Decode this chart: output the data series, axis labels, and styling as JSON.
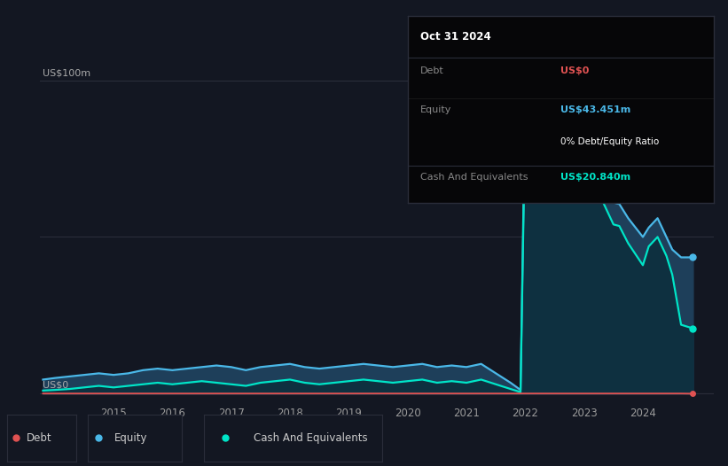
{
  "bg_color": "#131722",
  "plot_bg_color": "#131722",
  "grid_color": "#2a2d3a",
  "debt_color": "#e05252",
  "equity_color": "#4ab8e8",
  "cash_color": "#00e5c8",
  "equity_fill_color": "#1e3f5a",
  "cash_fill_color": "#0e3040",
  "tooltip_bg": "#060608",
  "tooltip_border": "#2a2d3a",
  "tooltip_title": "Oct 31 2024",
  "tooltip_debt_label": "Debt",
  "tooltip_debt_value": "US$0",
  "tooltip_equity_label": "Equity",
  "tooltip_equity_value": "US$43.451m",
  "tooltip_ratio": "0% Debt/Equity Ratio",
  "tooltip_cash_label": "Cash And Equivalents",
  "tooltip_cash_value": "US$20.840m",
  "legend_debt": "Debt",
  "legend_equity": "Equity",
  "legend_cash": "Cash And Equivalents",
  "zero_label": "US$0",
  "hundred_label": "US$100m",
  "x_ticks": [
    2015,
    2016,
    2017,
    2018,
    2019,
    2020,
    2021,
    2022,
    2023,
    2024
  ],
  "years": [
    2013.8,
    2014.0,
    2014.25,
    2014.5,
    2014.75,
    2015.0,
    2015.25,
    2015.5,
    2015.75,
    2016.0,
    2016.25,
    2016.5,
    2016.75,
    2017.0,
    2017.25,
    2017.5,
    2017.75,
    2018.0,
    2018.25,
    2018.5,
    2018.75,
    2019.0,
    2019.25,
    2019.5,
    2019.75,
    2020.0,
    2020.25,
    2020.5,
    2020.75,
    2021.0,
    2021.25,
    2021.5,
    2021.75,
    2021.92,
    2022.0,
    2022.25,
    2022.5,
    2022.75,
    2023.0,
    2023.1,
    2023.25,
    2023.5,
    2023.6,
    2023.75,
    2024.0,
    2024.1,
    2024.25,
    2024.4,
    2024.5,
    2024.65,
    2024.85
  ],
  "equity": [
    4.5,
    5.0,
    5.5,
    6.0,
    6.5,
    6.0,
    6.5,
    7.5,
    8.0,
    7.5,
    8.0,
    8.5,
    9.0,
    8.5,
    7.5,
    8.5,
    9.0,
    9.5,
    8.5,
    8.0,
    8.5,
    9.0,
    9.5,
    9.0,
    8.5,
    9.0,
    9.5,
    8.5,
    9.0,
    8.5,
    9.5,
    6.5,
    3.5,
    1.2,
    96.0,
    91.0,
    86.0,
    79.0,
    74.0,
    72.0,
    69.0,
    61.0,
    60.5,
    56.0,
    50.0,
    53.0,
    56.0,
    50.0,
    46.0,
    43.5,
    43.5
  ],
  "cash": [
    1.0,
    1.2,
    1.5,
    2.0,
    2.5,
    2.0,
    2.5,
    3.0,
    3.5,
    3.0,
    3.5,
    4.0,
    3.5,
    3.0,
    2.5,
    3.5,
    4.0,
    4.5,
    3.5,
    3.0,
    3.5,
    4.0,
    4.5,
    4.0,
    3.5,
    4.0,
    4.5,
    3.5,
    4.0,
    3.5,
    4.5,
    3.0,
    1.5,
    0.5,
    89.0,
    84.0,
    78.0,
    72.0,
    67.0,
    66.5,
    64.0,
    54.0,
    53.5,
    48.0,
    41.0,
    47.0,
    50.0,
    44.0,
    38.0,
    22.0,
    20.84
  ],
  "debt": [
    0.05,
    0.05,
    0.05,
    0.05,
    0.05,
    0.05,
    0.05,
    0.05,
    0.05,
    0.05,
    0.05,
    0.05,
    0.05,
    0.05,
    0.05,
    0.05,
    0.05,
    0.05,
    0.05,
    0.05,
    0.05,
    0.05,
    0.05,
    0.05,
    0.05,
    0.05,
    0.05,
    0.05,
    0.05,
    0.05,
    0.05,
    0.05,
    0.05,
    0.05,
    0.05,
    0.05,
    0.05,
    0.05,
    0.05,
    0.05,
    0.05,
    0.05,
    0.05,
    0.05,
    0.05,
    0.05,
    0.05,
    0.05,
    0.05,
    0.05,
    0.0
  ],
  "ylim_max": 110,
  "ylim_min": -3,
  "xlim_min": 2013.75,
  "xlim_max": 2025.2
}
